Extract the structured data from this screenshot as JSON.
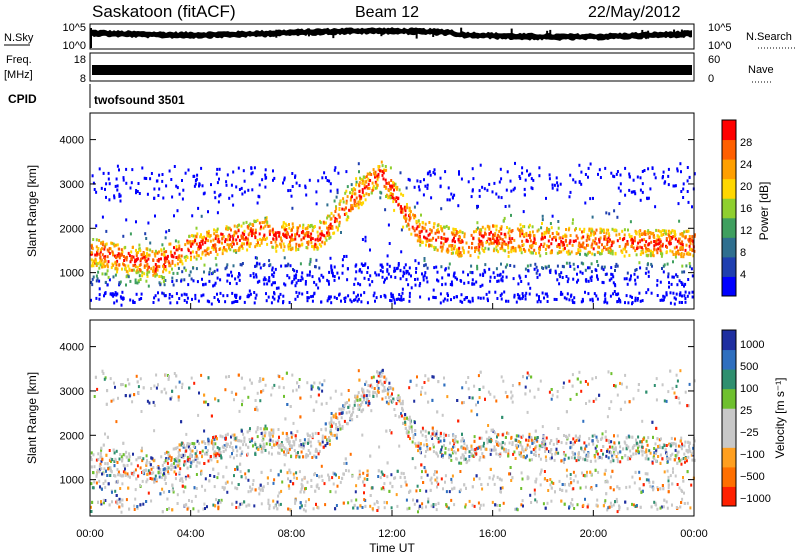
{
  "header": {
    "station": "Saskatoon (fitACF)",
    "beam": "Beam 12",
    "date": "22/May/2012"
  },
  "strip_noise": {
    "left_label": "N.Sky",
    "right_label": "N.Search",
    "left_ticks": [
      "10^5",
      "10^0"
    ],
    "right_ticks": [
      "10^5",
      "10^0"
    ]
  },
  "strip_freq": {
    "left_label_1": "Freq.",
    "left_label_2": "[MHz]",
    "right_label": "Nave",
    "left_ticks": [
      "18",
      "8"
    ],
    "right_ticks": [
      "60",
      "0"
    ]
  },
  "cpid": {
    "label": "CPID",
    "value": "twofsound 3501"
  },
  "colors": {
    "power_scale": [
      "#0000ff",
      "#1f3fb0",
      "#2f6f8f",
      "#3f9f5f",
      "#8fcf2f",
      "#ffd700",
      "#ff9f00",
      "#ff5f00",
      "#ff0000"
    ],
    "velocity_scale": [
      "#1f2fa0",
      "#2f6fbf",
      "#2f8f6f",
      "#6fc02f",
      "#c8c8c8",
      "#c8c8c8",
      "#ff9f1f",
      "#ff6f00",
      "#ff2000"
    ]
  },
  "chart_data": [
    {
      "type": "heatmap",
      "panel": "power",
      "ylabel": "Slant Range [km]",
      "yticks": [
        1000,
        2000,
        3000,
        4000
      ],
      "ylim": [
        180,
        4600
      ],
      "xlim_hours": [
        0,
        24
      ],
      "colorbar": {
        "label": "Power [dB]",
        "ticks": [
          "4",
          "8",
          "12",
          "16",
          "20",
          "24",
          "28"
        ]
      }
    },
    {
      "type": "heatmap",
      "panel": "velocity",
      "ylabel": "Slant Range [km]",
      "yticks": [
        1000,
        2000,
        3000,
        4000
      ],
      "ylim": [
        180,
        4600
      ],
      "xlim_hours": [
        0,
        24
      ],
      "xtick_labels": [
        "00:00",
        "04:00",
        "08:00",
        "12:00",
        "16:00",
        "20:00",
        "00:00"
      ],
      "xlabel": "Time UT",
      "colorbar": {
        "label": "Velocity [m s⁻¹]",
        "ticks": [
          "1000",
          "500",
          "100",
          "25",
          "−25",
          "−100",
          "−500",
          "−1000"
        ]
      }
    }
  ]
}
